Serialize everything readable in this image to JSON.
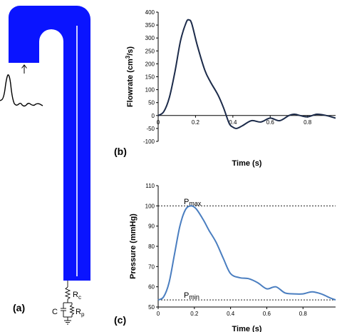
{
  "colors": {
    "vessel": "#0a14ff",
    "flow_line": "#1c2b4a",
    "pressure_line": "#4a7ec0",
    "axis": "#000000"
  },
  "panels": {
    "a": "(a)",
    "b": "(b)",
    "c": "(c)"
  },
  "circuit": {
    "r_c_main": "R",
    "r_c_sub": "c",
    "c_label": "C",
    "r_p_main": "R",
    "r_p_sub": "p"
  },
  "chart_data": [
    {
      "id": "b",
      "type": "line",
      "xlabel": "Time (s)",
      "ylabel_parts": [
        "Flowrate (cm",
        "3",
        "/s)"
      ],
      "xlim": [
        0,
        0.95
      ],
      "ylim": [
        -100,
        400
      ],
      "xticks": [
        0,
        0.2,
        0.4,
        0.6,
        0.8
      ],
      "xtick_labels": [
        "0",
        "0.2",
        "0.4",
        "0.6",
        "0.8"
      ],
      "yticks": [
        -100,
        -50,
        0,
        50,
        100,
        150,
        200,
        250,
        300,
        350,
        400
      ],
      "ytick_labels": [
        "-100",
        "-50",
        "0",
        "50",
        "100",
        "150",
        "200",
        "250",
        "300",
        "350",
        "400"
      ],
      "series": [
        {
          "x": [
            0,
            0.03,
            0.06,
            0.09,
            0.12,
            0.15,
            0.165,
            0.18,
            0.21,
            0.25,
            0.28,
            0.32,
            0.35,
            0.38,
            0.4,
            0.42,
            0.45,
            0.5,
            0.55,
            0.6,
            0.65,
            0.7,
            0.73,
            0.76,
            0.8,
            0.85,
            0.9,
            0.95
          ],
          "y": [
            0,
            15,
            70,
            170,
            290,
            360,
            370,
            355,
            270,
            175,
            130,
            80,
            30,
            -30,
            -45,
            -50,
            -40,
            -20,
            -25,
            -10,
            -20,
            0,
            5,
            0,
            -5,
            5,
            0,
            -10
          ]
        }
      ]
    },
    {
      "id": "c",
      "type": "line",
      "xlabel": "Time (s)",
      "ylabel": "Pressure (mmHg)",
      "xlim": [
        0,
        0.98
      ],
      "ylim": [
        50,
        110
      ],
      "xticks": [
        0,
        0.2,
        0.4,
        0.6,
        0.8
      ],
      "xtick_labels": [
        "0",
        "0.2",
        "0.4",
        "0.6",
        "0.8"
      ],
      "yticks": [
        50,
        60,
        70,
        80,
        90,
        100,
        110
      ],
      "ytick_labels": [
        "50",
        "60",
        "70",
        "80",
        "90",
        "100",
        "110"
      ],
      "reference_lines": [
        {
          "y": 100,
          "label_main": "P",
          "label_sub": "max"
        },
        {
          "y": 53.5,
          "label_main": "P",
          "label_sub": "min"
        }
      ],
      "series": [
        {
          "x": [
            0,
            0.03,
            0.06,
            0.09,
            0.12,
            0.15,
            0.18,
            0.21,
            0.25,
            0.28,
            0.32,
            0.36,
            0.4,
            0.45,
            0.5,
            0.55,
            0.6,
            0.65,
            0.7,
            0.75,
            0.8,
            0.85,
            0.9,
            0.95,
            0.98
          ],
          "y": [
            53.5,
            55,
            62,
            76,
            90,
            98,
            100,
            98.5,
            93,
            88,
            82,
            74,
            66.5,
            64.5,
            64,
            62,
            59,
            60,
            57,
            56.5,
            56.5,
            57.5,
            56.5,
            54.5,
            53.5
          ]
        }
      ]
    }
  ]
}
